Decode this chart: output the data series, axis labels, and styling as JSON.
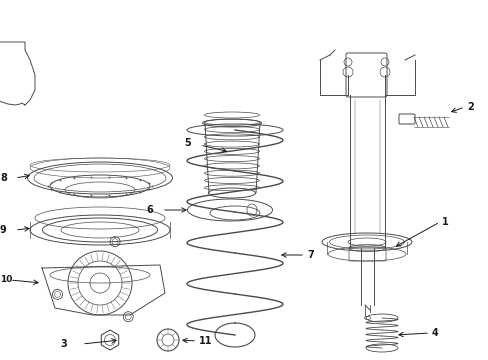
{
  "background_color": "#ffffff",
  "fig_width": 4.89,
  "fig_height": 3.6,
  "dpi": 100,
  "line_color": "#4a4a4a",
  "text_color": "#1a1a1a",
  "lw": 0.7
}
